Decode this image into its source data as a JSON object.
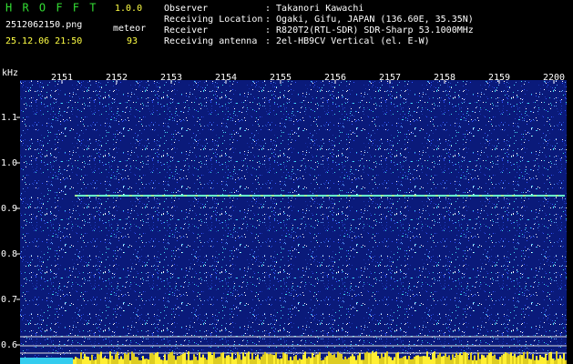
{
  "header": {
    "app_name": "H R O F F T",
    "version": "1.0.0",
    "filename": "2512062150.png",
    "datetime": "25.12.06 21:50",
    "meteor_label": "meteor",
    "meteor_count": "93",
    "info": [
      {
        "label": "Observer",
        "value": ": Takanori Kawachi"
      },
      {
        "label": "Receiving Location",
        "value": ": Ogaki, Gifu, JAPAN (136.60E, 35.35N)"
      },
      {
        "label": "Receiver",
        "value": ": R820T2(RTL-SDR) SDR-Sharp 53.1000MHz"
      },
      {
        "label": "Receiving antenna",
        "value": ": 2el-HB9CV Vertical (el. E-W)"
      }
    ]
  },
  "axes": {
    "y_unit": "kHz",
    "y_ticks": [
      "1.1",
      "1.0",
      "0.9",
      "0.8",
      "0.7",
      "0.6"
    ],
    "x_ticks": [
      "2151",
      "2152",
      "2153",
      "2154",
      "2155",
      "2156",
      "2157",
      "2158",
      "2159",
      "2200"
    ]
  }
}
